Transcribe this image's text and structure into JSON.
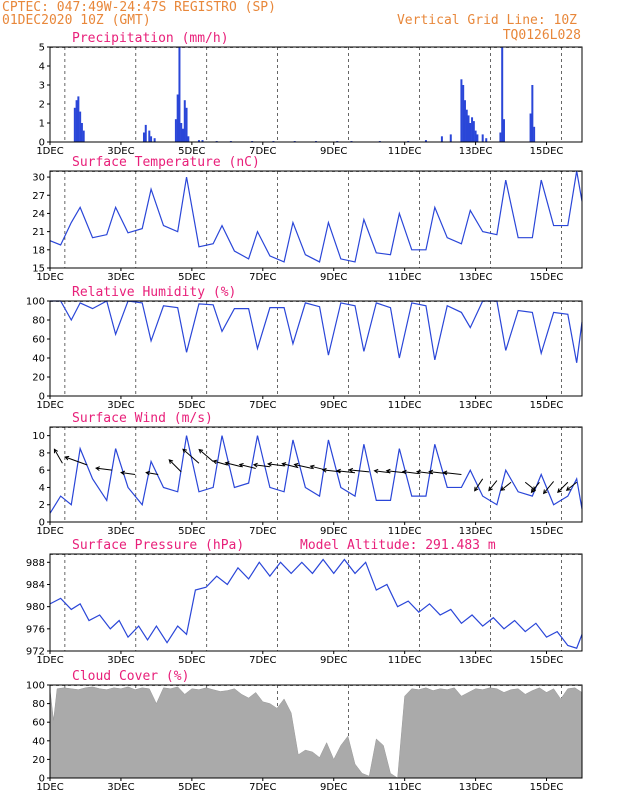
{
  "header": {
    "line1": "CPTEC:  047:49W-24:47S  REGISTRO (SP)",
    "line2": "01DEC2020 10Z (GMT)",
    "vgrid": "Vertical Grid Line: 10Z",
    "code": "TQ0126L028"
  },
  "colors": {
    "header": "#e8873a",
    "title": "#e8207a",
    "line": "#2a46d8",
    "bars": "#2a46d8",
    "cloud": "#aaaaaa",
    "arrows": "#000000"
  },
  "chart_data": [
    {
      "type": "bar",
      "title": "Precipitation (mm/h)",
      "x_labels": [
        "1DEC",
        "3DEC",
        "5DEC",
        "7DEC",
        "9DEC",
        "11DEC",
        "13DEC",
        "15DEC"
      ],
      "yticks": [
        0,
        1,
        2,
        3,
        4,
        5
      ],
      "ylim": [
        0,
        5
      ],
      "x_unit": "day since 01DEC 00Z",
      "x": [
        1.7,
        1.75,
        1.8,
        1.85,
        1.9,
        1.95,
        3.65,
        3.7,
        3.8,
        3.85,
        3.95,
        4.55,
        4.6,
        4.65,
        4.7,
        4.75,
        4.8,
        4.85,
        4.9,
        5.2,
        5.3,
        5.7,
        6.1,
        6.7,
        7.3,
        7.9,
        8.5,
        9.1,
        9.5,
        10.3,
        11.1,
        11.6,
        12.05,
        12.3,
        12.6,
        12.65,
        12.7,
        12.75,
        12.8,
        12.85,
        12.9,
        12.95,
        13.0,
        13.05,
        13.2,
        13.3,
        13.7,
        13.75,
        13.8,
        14.55,
        14.6,
        14.65
      ],
      "values": [
        1.8,
        2.2,
        2.4,
        1.6,
        1.0,
        0.6,
        0.5,
        0.9,
        0.6,
        0.3,
        0.2,
        1.2,
        2.5,
        5.0,
        1.0,
        0.7,
        2.2,
        1.8,
        0.3,
        0.1,
        0.1,
        0.05,
        0.05,
        0.05,
        0.05,
        0.05,
        0.05,
        0.05,
        0.05,
        0.05,
        0.05,
        0.1,
        0.3,
        0.4,
        3.3,
        3.0,
        2.2,
        1.7,
        1.4,
        1.0,
        1.3,
        1.1,
        0.6,
        0.4,
        0.4,
        0.2,
        0.5,
        5.0,
        1.2,
        1.5,
        3.0,
        0.8
      ]
    },
    {
      "type": "line",
      "title": "Surface Temperature (nC)",
      "x_labels": [
        "1DEC",
        "3DEC",
        "5DEC",
        "7DEC",
        "9DEC",
        "11DEC",
        "13DEC",
        "15DEC"
      ],
      "yticks": [
        15,
        18,
        21,
        24,
        27,
        30
      ],
      "ylim": [
        15,
        31
      ],
      "x_unit": "day since 01DEC 00Z",
      "x": [
        1.0,
        1.3,
        1.6,
        1.85,
        2.2,
        2.6,
        2.85,
        3.2,
        3.6,
        3.85,
        4.2,
        4.6,
        4.85,
        5.2,
        5.6,
        5.85,
        6.2,
        6.6,
        6.85,
        7.2,
        7.6,
        7.85,
        8.2,
        8.6,
        8.85,
        9.2,
        9.6,
        9.85,
        10.2,
        10.6,
        10.85,
        11.2,
        11.6,
        11.85,
        12.2,
        12.6,
        12.85,
        13.2,
        13.6,
        13.85,
        14.2,
        14.6,
        14.85,
        15.2,
        15.6,
        15.85,
        16.0
      ],
      "values": [
        19.5,
        18.8,
        22.5,
        25.0,
        20.0,
        20.5,
        25.0,
        20.8,
        21.5,
        28.0,
        22.0,
        21.0,
        30.0,
        18.5,
        19.0,
        22.0,
        17.8,
        16.5,
        21.0,
        17.0,
        16.0,
        22.5,
        17.2,
        16.0,
        22.5,
        16.5,
        16.0,
        23.0,
        17.5,
        17.2,
        24.0,
        18.0,
        18.0,
        25.0,
        20.0,
        19.0,
        24.5,
        21.0,
        20.5,
        29.5,
        20.0,
        20.0,
        29.5,
        22.0,
        22.0,
        31.0,
        26.0
      ]
    },
    {
      "type": "line",
      "title": "Relative Humidity (%)",
      "x_labels": [
        "1DEC",
        "3DEC",
        "5DEC",
        "7DEC",
        "9DEC",
        "11DEC",
        "13DEC",
        "15DEC"
      ],
      "yticks": [
        0,
        20,
        40,
        60,
        80,
        100
      ],
      "ylim": [
        0,
        100
      ],
      "x_unit": "day since 01DEC 00Z",
      "x": [
        1.0,
        1.3,
        1.6,
        1.85,
        2.2,
        2.6,
        2.85,
        3.2,
        3.6,
        3.85,
        4.2,
        4.6,
        4.85,
        5.2,
        5.6,
        5.85,
        6.2,
        6.6,
        6.85,
        7.2,
        7.6,
        7.85,
        8.2,
        8.6,
        8.85,
        9.2,
        9.6,
        9.85,
        10.2,
        10.6,
        10.85,
        11.2,
        11.6,
        11.85,
        12.2,
        12.6,
        12.85,
        13.2,
        13.6,
        13.85,
        14.2,
        14.6,
        14.85,
        15.2,
        15.6,
        15.85,
        16.0
      ],
      "values": [
        100,
        100,
        80,
        98,
        92,
        100,
        65,
        100,
        98,
        58,
        95,
        93,
        46,
        97,
        96,
        68,
        92,
        92,
        50,
        93,
        93,
        55,
        98,
        94,
        43,
        98,
        95,
        47,
        98,
        93,
        40,
        98,
        95,
        38,
        95,
        88,
        72,
        100,
        100,
        48,
        90,
        88,
        45,
        88,
        86,
        35,
        78
      ]
    },
    {
      "type": "line",
      "title": "Surface Wind (m/s)",
      "x_labels": [
        "1DEC",
        "3DEC",
        "5DEC",
        "7DEC",
        "9DEC",
        "11DEC",
        "13DEC",
        "15DEC"
      ],
      "yticks": [
        0,
        2,
        4,
        6,
        8,
        10
      ],
      "ylim": [
        0,
        11
      ],
      "x_unit": "day since 01DEC 00Z",
      "x": [
        1.0,
        1.3,
        1.6,
        1.85,
        2.2,
        2.6,
        2.85,
        3.2,
        3.6,
        3.85,
        4.2,
        4.6,
        4.85,
        5.2,
        5.6,
        5.85,
        6.2,
        6.6,
        6.85,
        7.2,
        7.6,
        7.85,
        8.2,
        8.6,
        8.85,
        9.2,
        9.6,
        9.85,
        10.2,
        10.6,
        10.85,
        11.2,
        11.6,
        11.85,
        12.2,
        12.6,
        12.85,
        13.2,
        13.6,
        13.85,
        14.2,
        14.6,
        14.85,
        15.2,
        15.6,
        15.85,
        16.0
      ],
      "values": [
        1.0,
        3.0,
        2.0,
        8.5,
        5.0,
        2.5,
        8.5,
        4.0,
        2.0,
        7.0,
        4.0,
        3.5,
        10.0,
        3.5,
        4.0,
        10.0,
        4.0,
        4.5,
        10.0,
        4.0,
        3.5,
        9.5,
        4.0,
        3.0,
        9.5,
        4.0,
        3.0,
        9.0,
        2.5,
        2.5,
        8.5,
        3.0,
        3.0,
        9.0,
        4.0,
        4.0,
        6.0,
        3.0,
        2.0,
        6.0,
        3.5,
        3.0,
        5.5,
        2.0,
        3.0,
        5.0,
        1.5
      ],
      "vectors": {
        "x": [
          1.35,
          2.05,
          2.75,
          3.4,
          4.05,
          4.7,
          5.2,
          5.6,
          6.0,
          6.4,
          6.8,
          7.2,
          7.6,
          8.0,
          8.4,
          8.8,
          9.2,
          9.6,
          10.0,
          10.6,
          11.0,
          11.4,
          11.8,
          12.2,
          12.6,
          13.2,
          13.6,
          14.0,
          14.4,
          14.8,
          15.2,
          15.6,
          15.85
        ],
        "y": [
          6.8,
          6.6,
          6.0,
          5.5,
          5.5,
          5.8,
          6.8,
          7.0,
          6.6,
          6.4,
          6.2,
          6.4,
          6.5,
          6.3,
          6.2,
          6.0,
          5.8,
          5.7,
          5.8,
          5.7,
          5.7,
          5.6,
          5.6,
          5.6,
          5.5,
          5.0,
          4.8,
          4.6,
          4.6,
          4.6,
          4.7,
          4.6,
          4.6
        ],
        "dx": [
          -8,
          -22,
          -16,
          -14,
          -12,
          -12,
          -16,
          -14,
          -14,
          -16,
          -16,
          -16,
          -16,
          -16,
          -18,
          -16,
          -18,
          -18,
          -20,
          -16,
          -18,
          -16,
          -16,
          -18,
          -18,
          -8,
          -8,
          -10,
          10,
          -8,
          -10,
          -10,
          -10
        ],
        "dy": [
          -14,
          -8,
          -2,
          -2,
          -2,
          -12,
          -14,
          -12,
          -4,
          -4,
          -4,
          -2,
          -2,
          -4,
          -4,
          -4,
          -2,
          -2,
          -2,
          -2,
          -2,
          -2,
          -2,
          -2,
          -2,
          12,
          10,
          8,
          8,
          10,
          12,
          10,
          8
        ]
      }
    },
    {
      "type": "line",
      "title": "Surface Pressure (hPa)",
      "subtitle": "Model Altitude: 291.483 m",
      "x_labels": [
        "1DEC",
        "3DEC",
        "5DEC",
        "7DEC",
        "9DEC",
        "11DEC",
        "13DEC",
        "15DEC"
      ],
      "yticks": [
        972,
        976,
        980,
        984,
        988
      ],
      "ylim": [
        972,
        989.5
      ],
      "x_unit": "day since 01DEC 00Z",
      "x": [
        1.0,
        1.3,
        1.6,
        1.85,
        2.1,
        2.4,
        2.7,
        2.95,
        3.2,
        3.5,
        3.75,
        4.0,
        4.3,
        4.6,
        4.85,
        5.1,
        5.4,
        5.7,
        6.0,
        6.3,
        6.6,
        6.9,
        7.2,
        7.5,
        7.8,
        8.1,
        8.4,
        8.7,
        9.0,
        9.3,
        9.6,
        9.9,
        10.2,
        10.5,
        10.8,
        11.1,
        11.4,
        11.7,
        12.0,
        12.3,
        12.6,
        12.9,
        13.2,
        13.5,
        13.8,
        14.1,
        14.4,
        14.7,
        15.0,
        15.3,
        15.6,
        15.85,
        16.0
      ],
      "values": [
        980.5,
        981.5,
        979.5,
        980.5,
        977.5,
        978.5,
        976.0,
        977.5,
        974.5,
        976.5,
        974.0,
        976.5,
        973.5,
        976.5,
        975.0,
        983.0,
        983.5,
        985.5,
        984.0,
        987.0,
        985.0,
        988.0,
        985.5,
        988.0,
        986.0,
        988.0,
        986.0,
        988.5,
        986.0,
        988.5,
        986.0,
        988.0,
        983.0,
        984.0,
        980.0,
        981.0,
        979.0,
        980.5,
        978.5,
        979.5,
        977.0,
        978.5,
        976.5,
        978.0,
        976.0,
        977.5,
        975.5,
        977.0,
        974.5,
        975.5,
        973.0,
        972.5,
        975.0
      ]
    },
    {
      "type": "area",
      "title": "Cloud Cover (%)",
      "x_labels": [
        "1DEC",
        "3DEC",
        "5DEC",
        "7DEC",
        "9DEC",
        "11DEC",
        "13DEC",
        "15DEC"
      ],
      "yticks": [
        0,
        20,
        40,
        60,
        80,
        100
      ],
      "ylim": [
        0,
        100
      ],
      "x_unit": "day since 01DEC 00Z",
      "x": [
        1.0,
        1.1,
        1.2,
        1.4,
        1.6,
        1.8,
        2.0,
        2.2,
        2.4,
        2.6,
        2.8,
        3.0,
        3.2,
        3.4,
        3.6,
        3.8,
        4.0,
        4.2,
        4.4,
        4.6,
        4.8,
        5.0,
        5.2,
        5.4,
        5.6,
        5.8,
        6.0,
        6.2,
        6.4,
        6.6,
        6.8,
        7.0,
        7.2,
        7.4,
        7.6,
        7.8,
        8.0,
        8.2,
        8.4,
        8.6,
        8.8,
        9.0,
        9.2,
        9.4,
        9.6,
        9.8,
        10.0,
        10.2,
        10.4,
        10.6,
        10.8,
        11.0,
        11.2,
        11.4,
        11.6,
        11.8,
        12.0,
        12.2,
        12.4,
        12.6,
        12.8,
        13.0,
        13.2,
        13.4,
        13.6,
        13.8,
        14.0,
        14.2,
        14.4,
        14.6,
        14.8,
        15.0,
        15.2,
        15.4,
        15.6,
        15.8,
        16.0
      ],
      "values": [
        95,
        62,
        96,
        97,
        96,
        95,
        97,
        98,
        96,
        95,
        97,
        96,
        98,
        95,
        97,
        96,
        80,
        97,
        96,
        98,
        90,
        96,
        95,
        97,
        95,
        93,
        94,
        96,
        90,
        86,
        92,
        82,
        80,
        75,
        85,
        70,
        25,
        30,
        28,
        22,
        38,
        20,
        35,
        45,
        15,
        5,
        2,
        42,
        35,
        5,
        0,
        88,
        96,
        95,
        97,
        94,
        96,
        95,
        97,
        88,
        92,
        96,
        95,
        97,
        96,
        92,
        95,
        96,
        90,
        94,
        97,
        92,
        96,
        85,
        96,
        97,
        92
      ]
    }
  ]
}
